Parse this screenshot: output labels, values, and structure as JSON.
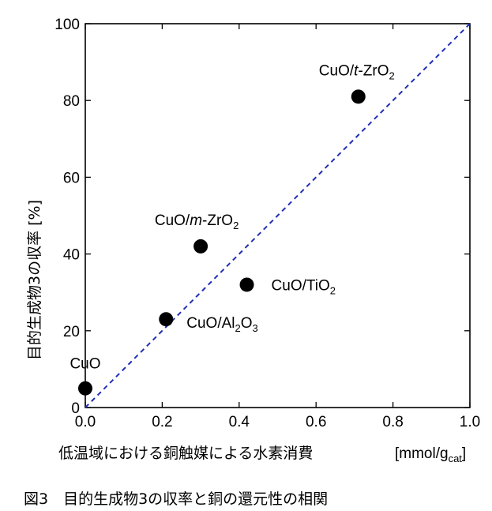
{
  "chart_data": {
    "type": "scatter",
    "xlim": [
      0.0,
      1.0
    ],
    "ylim": [
      0,
      100
    ],
    "x_ticks": [
      0.0,
      0.2,
      0.4,
      0.6,
      0.8,
      1.0
    ],
    "x_tick_labels": [
      "0.0",
      "0.2",
      "0.4",
      "0.6",
      "0.8",
      "1.0"
    ],
    "y_ticks": [
      0,
      20,
      40,
      60,
      80,
      100
    ],
    "y_tick_labels": [
      "0",
      "20",
      "40",
      "60",
      "80",
      "100"
    ],
    "xlabel": "低温域における銅触媒による水素消費",
    "xunit": {
      "pre": "[mmol/g",
      "sub": "cat",
      "post": "]"
    },
    "ylabel": "目的生成物3の収率 [%]",
    "grid": false,
    "reference_line": {
      "from": [
        0.0,
        0.0
      ],
      "to": [
        1.0,
        100.0
      ],
      "style": "dashed",
      "color": "#1f2fb5"
    },
    "marker_color": "#000000",
    "points": [
      {
        "x": 0.0,
        "y": 5,
        "label": [
          {
            "t": "CuO"
          }
        ]
      },
      {
        "x": 0.21,
        "y": 23,
        "label": [
          {
            "t": "CuO/Al"
          },
          {
            "t": "2",
            "sub": true
          },
          {
            "t": "O"
          },
          {
            "t": "3",
            "sub": true
          }
        ]
      },
      {
        "x": 0.3,
        "y": 42,
        "label": [
          {
            "t": "CuO/"
          },
          {
            "t": "m",
            "italic": true
          },
          {
            "t": "-ZrO"
          },
          {
            "t": "2",
            "sub": true
          }
        ]
      },
      {
        "x": 0.42,
        "y": 32,
        "label": [
          {
            "t": "CuO/TiO"
          },
          {
            "t": "2",
            "sub": true
          }
        ]
      },
      {
        "x": 0.71,
        "y": 81,
        "label": [
          {
            "t": "CuO/"
          },
          {
            "t": "t",
            "italic": true
          },
          {
            "t": "-ZrO"
          },
          {
            "t": "2",
            "sub": true
          }
        ]
      }
    ]
  },
  "caption": "図3　目的生成物3の収率と銅の還元性の相関"
}
